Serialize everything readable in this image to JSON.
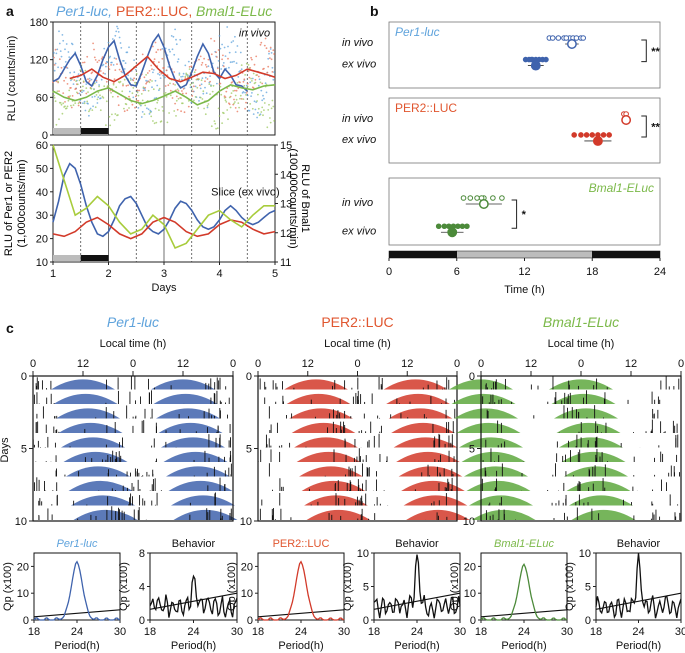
{
  "panel_labels": {
    "a": "a",
    "b": "b",
    "c": "c"
  },
  "colors": {
    "per1": "#3f63ad",
    "per2": "#d23a2a",
    "bmal1": "#7cb94a",
    "bmal1_dark": "#4c8a3a",
    "per1_light": "#5fa3dc",
    "per2_light": "#e8745a",
    "bmal1_light": "#9cc860",
    "per2_title": "#e0562f",
    "gray": "#bcbcbc",
    "black": "#111111"
  },
  "chart_data": [
    {
      "id": "a_invivo",
      "type": "line",
      "title_parts": [
        "Per1-luc,",
        "PER2::LUC,",
        "Bmal1-ELuc"
      ],
      "annotation": "in vivo",
      "ylabel": "RLU (counts/min)",
      "yticks": [
        0,
        60,
        120,
        180
      ],
      "ylim": [
        0,
        180
      ],
      "xlim": [
        1,
        5
      ],
      "series": [
        {
          "name": "Per1-luc",
          "color": "#3f63ad",
          "x": [
            1,
            1.1,
            1.2,
            1.3,
            1.4,
            1.5,
            1.6,
            1.7,
            1.8,
            1.9,
            2,
            2.1,
            2.2,
            2.3,
            2.4,
            2.5,
            2.6,
            2.7,
            2.8,
            2.9,
            3,
            3.1,
            3.2,
            3.3,
            3.4,
            3.5,
            3.6,
            3.7,
            3.8,
            3.9,
            4,
            4.1,
            4.2,
            4.3,
            4.4,
            4.5
          ],
          "y": [
            85,
            90,
            105,
            120,
            130,
            110,
            85,
            78,
            95,
            120,
            140,
            150,
            120,
            95,
            80,
            78,
            100,
            125,
            148,
            160,
            140,
            110,
            88,
            75,
            80,
            100,
            125,
            145,
            130,
            100,
            90,
            105,
            95,
            80,
            78,
            70
          ]
        },
        {
          "name": "PER2::LUC",
          "color": "#d23a2a",
          "x": [
            1.3,
            1.5,
            1.7,
            1.9,
            2.1,
            2.3,
            2.5,
            2.7,
            2.9,
            3.1,
            3.3,
            3.5,
            3.7,
            3.9,
            4.1,
            4.3,
            4.5,
            4.7,
            4.9,
            5
          ],
          "y": [
            90,
            95,
            105,
            92,
            85,
            95,
            110,
            125,
            105,
            90,
            85,
            92,
            100,
            98,
            90,
            95,
            105,
            100,
            95,
            92
          ]
        },
        {
          "name": "Bmal1-ELuc",
          "color": "#7cb94a",
          "x": [
            1,
            1.2,
            1.4,
            1.6,
            1.8,
            2,
            2.2,
            2.4,
            2.6,
            2.8,
            3,
            3.2,
            3.4,
            3.6,
            3.8,
            4,
            4.2,
            4.4,
            4.6,
            4.8,
            5
          ],
          "y": [
            70,
            60,
            55,
            60,
            70,
            75,
            65,
            55,
            50,
            55,
            62,
            70,
            60,
            48,
            55,
            70,
            80,
            75,
            72,
            78,
            80
          ]
        }
      ]
    },
    {
      "id": "a_slice",
      "type": "line",
      "annotation": "Slice (ex vivo)",
      "ylabel_left": "RLU of Per1 or PER2\n(1,000counts/min)",
      "ylabel_right": "RLU of Bmal1\n(100,000counts/min)",
      "xlabel": "Days",
      "xticks": [
        1,
        2,
        3,
        4,
        5
      ],
      "ylim": [
        10,
        60
      ],
      "yticks": [
        10,
        20,
        30,
        40,
        50,
        60
      ],
      "ylim_right": [
        11,
        15
      ],
      "yticks_right": [
        11,
        12,
        13,
        14,
        15
      ],
      "xlim": [
        1,
        5
      ],
      "series": [
        {
          "name": "Per1-luc",
          "color": "#3f63ad",
          "x": [
            1,
            1.1,
            1.2,
            1.3,
            1.4,
            1.5,
            1.6,
            1.7,
            1.8,
            1.9,
            2,
            2.1,
            2.2,
            2.3,
            2.4,
            2.5,
            2.6,
            2.7,
            2.8,
            2.9,
            3,
            3.1,
            3.2,
            3.3,
            3.4,
            3.5,
            3.6,
            3.7,
            3.8,
            3.9,
            4,
            4.1,
            4.2,
            4.3,
            4.4,
            4.5,
            4.6,
            4.7,
            4.8,
            4.9,
            5
          ],
          "y": [
            27,
            36,
            47,
            52,
            50,
            43,
            34,
            27,
            22,
            21,
            23,
            28,
            34,
            37,
            38,
            35,
            30,
            25,
            23,
            22,
            24,
            28,
            33,
            36,
            35,
            32,
            28,
            25,
            24,
            25,
            28,
            32,
            34,
            32,
            29,
            27,
            26,
            27,
            29,
            31,
            32
          ]
        },
        {
          "name": "PER2::LUC",
          "color": "#d23a2a",
          "x": [
            1,
            1.2,
            1.4,
            1.6,
            1.8,
            2,
            2.2,
            2.4,
            2.6,
            2.8,
            3,
            3.2,
            3.4,
            3.6,
            3.8,
            4,
            4.2,
            4.4,
            4.6,
            4.8,
            5
          ],
          "y": [
            22,
            21,
            23,
            27,
            29,
            26,
            22,
            20,
            22,
            27,
            29,
            27,
            23,
            21,
            22,
            26,
            28,
            27,
            24,
            22,
            23
          ]
        },
        {
          "name": "Bmal1-ELuc",
          "color": "#a8cc3c",
          "x": [
            1,
            1.2,
            1.4,
            1.6,
            1.8,
            2,
            2.2,
            2.4,
            2.6,
            2.8,
            3,
            3.2,
            3.4,
            3.6,
            3.8,
            4,
            4.2,
            4.4,
            4.6,
            4.8,
            5
          ],
          "y": [
            60,
            45,
            30,
            33,
            38,
            34,
            27,
            22,
            24,
            30,
            26,
            16,
            18,
            24,
            30,
            32,
            28,
            25,
            30,
            34,
            34
          ]
        }
      ]
    },
    {
      "id": "b",
      "type": "scatter",
      "xlabel": "Time (h)",
      "xticks": [
        0,
        6,
        12,
        18,
        24
      ],
      "xlim": [
        0,
        24
      ],
      "groups": [
        {
          "name": "Per1-luc",
          "color": "#3f63ad",
          "rows": [
            {
              "label": "in vivo",
              "dots": [
                14.2,
                14.5,
                15,
                15.5,
                16,
                16.3,
                16.6,
                17,
                17.2,
                15.7
              ],
              "mean": 16.2,
              "err": 0.6,
              "filled": false
            },
            {
              "label": "ex vivo",
              "dots": [
                12.1,
                12.4,
                12.7,
                13,
                13.3,
                13.6,
                13.9,
                12.6
              ],
              "mean": 13,
              "err": 0.7,
              "filled": true
            }
          ],
          "sig": "**"
        },
        {
          "name": "PER2::LUC",
          "color": "#d23a2a",
          "rows": [
            {
              "label": "in vivo",
              "dots": [
                20.8,
                21
              ],
              "mean": 21,
              "err": 0,
              "filled": false
            },
            {
              "label": "ex vivo",
              "dots": [
                16.4,
                17,
                17.5,
                18,
                18.5,
                19,
                19.5
              ],
              "mean": 18.5,
              "err": 1.2,
              "filled": true
            }
          ],
          "sig": "**"
        },
        {
          "name": "Bmal1-ELuc",
          "color": "#4c8a3a",
          "rows": [
            {
              "label": "in vivo",
              "dots": [
                6.6,
                7.2,
                7.8,
                8.4,
                9.2,
                10,
                8.2
              ],
              "mean": 8.4,
              "err": 1.6,
              "filled": false
            },
            {
              "label": "ex vivo",
              "dots": [
                4.4,
                4.9,
                5.3,
                5.7,
                6.1,
                6.5,
                6.9
              ],
              "mean": 5.6,
              "err": 1,
              "filled": true
            }
          ],
          "sig": "*"
        }
      ],
      "lightbar": [
        {
          "from": 0,
          "to": 6,
          "type": "dark"
        },
        {
          "from": 6,
          "to": 18,
          "type": "light"
        },
        {
          "from": 18,
          "to": 24,
          "type": "dark"
        }
      ]
    },
    {
      "id": "c_actograms",
      "type": "heatmap",
      "xlabel": "Local time (h)",
      "xticks": [
        "0",
        "12",
        "0",
        "12",
        "0"
      ],
      "ylabel": "Days",
      "yticks": [
        0,
        5,
        10
      ],
      "panels": [
        {
          "title": "Per1-luc",
          "color": "#3f63ad",
          "peak_hour": 12
        },
        {
          "title": "PER2::LUC",
          "color": "#d23a2a",
          "peak_hour": 14
        },
        {
          "title": "Bmal1-ELuc",
          "color": "#5ea83e",
          "peak_hour": 0
        }
      ]
    },
    {
      "id": "c_periodograms",
      "type": "line",
      "xlabel": "Period(h)",
      "xticks": [
        18,
        24,
        30
      ],
      "ylabel": "Qp (x100)",
      "panels": [
        {
          "title": "Per1-luc",
          "color": "#3f63ad",
          "ylim": [
            0,
            25
          ],
          "yticks": [
            0,
            10,
            20
          ],
          "peak_period": 24,
          "peak_value": 21
        },
        {
          "title": "Behavior",
          "color": "#111111",
          "ylim": [
            0,
            8
          ],
          "yticks": [
            0,
            4,
            8
          ],
          "peak_period": 24,
          "peak_value": 4.8
        },
        {
          "title": "PER2::LUC",
          "color": "#d23a2a",
          "ylim": [
            0,
            25
          ],
          "yticks": [
            0,
            10,
            20
          ],
          "peak_period": 24,
          "peak_value": 21
        },
        {
          "title": "Behavior",
          "color": "#111111",
          "ylim": [
            0,
            10
          ],
          "yticks": [
            0,
            5,
            10
          ],
          "peak_period": 24,
          "peak_value": 8.5
        },
        {
          "title": "Bmal1-ELuc",
          "color": "#4c8a3a",
          "ylim": [
            0,
            25
          ],
          "yticks": [
            0,
            10,
            20
          ],
          "peak_period": 24,
          "peak_value": 20
        },
        {
          "title": "Behavior",
          "color": "#111111",
          "ylim": [
            0,
            10
          ],
          "yticks": [
            0,
            5,
            10
          ],
          "peak_period": 24,
          "peak_value": 9
        }
      ]
    }
  ]
}
